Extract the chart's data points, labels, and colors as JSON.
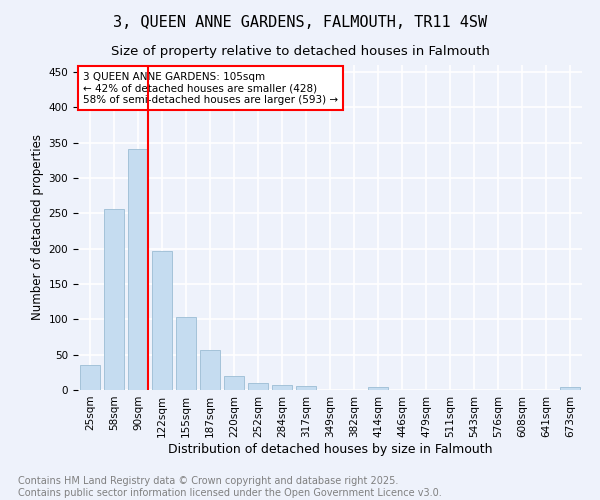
{
  "title": "3, QUEEN ANNE GARDENS, FALMOUTH, TR11 4SW",
  "subtitle": "Size of property relative to detached houses in Falmouth",
  "xlabel": "Distribution of detached houses by size in Falmouth",
  "ylabel": "Number of detached properties",
  "categories": [
    "25sqm",
    "58sqm",
    "90sqm",
    "122sqm",
    "155sqm",
    "187sqm",
    "220sqm",
    "252sqm",
    "284sqm",
    "317sqm",
    "349sqm",
    "382sqm",
    "414sqm",
    "446sqm",
    "479sqm",
    "511sqm",
    "543sqm",
    "576sqm",
    "608sqm",
    "641sqm",
    "673sqm"
  ],
  "values": [
    36,
    256,
    341,
    197,
    104,
    56,
    20,
    10,
    7,
    5,
    0,
    0,
    4,
    0,
    0,
    0,
    0,
    0,
    0,
    0,
    4
  ],
  "bar_color": "#c5dcf0",
  "bar_edge_color": "#9bbdd4",
  "vline_index": 2,
  "vline_color": "red",
  "ylim": [
    0,
    460
  ],
  "yticks": [
    0,
    50,
    100,
    150,
    200,
    250,
    300,
    350,
    400,
    450
  ],
  "annotation_text": "3 QUEEN ANNE GARDENS: 105sqm\n← 42% of detached houses are smaller (428)\n58% of semi-detached houses are larger (593) →",
  "annotation_box_color": "white",
  "annotation_box_edgecolor": "red",
  "footer": "Contains HM Land Registry data © Crown copyright and database right 2025.\nContains public sector information licensed under the Open Government Licence v3.0.",
  "background_color": "#eef2fb",
  "grid_color": "white",
  "title_fontsize": 11,
  "subtitle_fontsize": 9.5,
  "xlabel_fontsize": 9,
  "ylabel_fontsize": 8.5,
  "tick_fontsize": 7.5,
  "footer_fontsize": 7,
  "annotation_fontsize": 7.5
}
